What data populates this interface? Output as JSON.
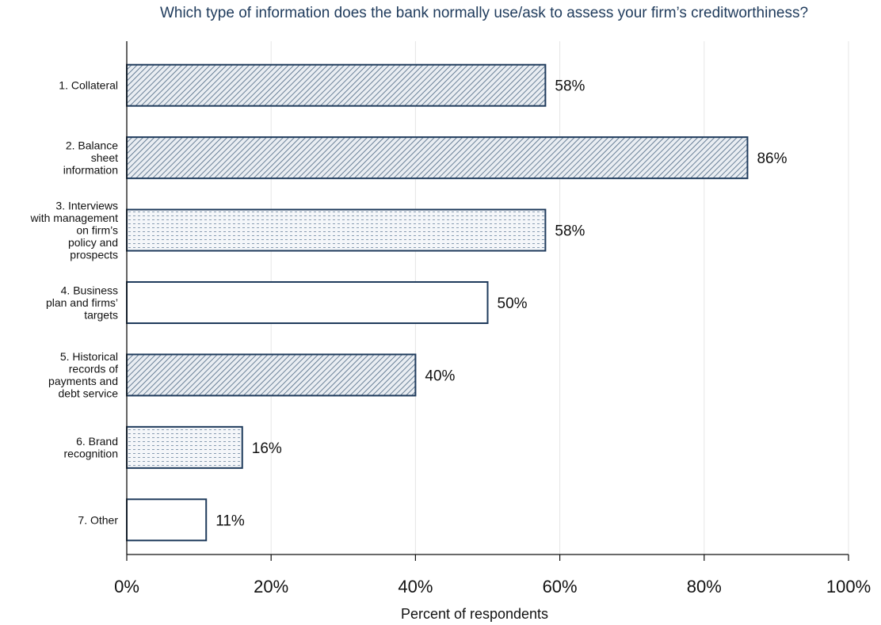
{
  "chart_data": {
    "type": "bar",
    "orientation": "horizontal",
    "title": "Which type of information does the bank normally use/ask to assess your firm’s creditworthiness?",
    "xlabel": "Percent of respondents",
    "ylabel": "",
    "xlim": [
      0,
      100
    ],
    "xticks": [
      "0%",
      "20%",
      "40%",
      "60%",
      "80%",
      "100%"
    ],
    "grid": "vertical",
    "categories": [
      "1. Collateral",
      "2. Balance sheet information",
      "3. Interviews with management on firm’s policy and prospects",
      "4. Business plan and firms’ targets",
      "5. Historical records of payments and debt service",
      "6. Brand recognition",
      "7. Other"
    ],
    "category_lines": [
      [
        "1. Collateral"
      ],
      [
        "2. Balance",
        "sheet",
        "information"
      ],
      [
        "3. Interviews",
        "with management",
        "on firm’s",
        "policy and",
        "prospects"
      ],
      [
        "4. Business",
        "plan and firms’",
        "targets"
      ],
      [
        "5. Historical",
        "records of",
        "payments and",
        "debt service"
      ],
      [
        "6. Brand",
        "recognition"
      ],
      [
        "7. Other"
      ]
    ],
    "values": [
      58,
      86,
      58,
      50,
      40,
      16,
      11
    ],
    "value_labels": [
      "58%",
      "86%",
      "58%",
      "50%",
      "40%",
      "16%",
      "11%"
    ],
    "fills": [
      "diagonal-hatch",
      "diagonal-hatch",
      "dotted",
      "none",
      "diagonal-hatch",
      "dotted",
      "none"
    ],
    "colors": {
      "bar_outline": "#1f3b5c",
      "title": "#1f3b5c",
      "grid": "#e6e6e6"
    }
  }
}
